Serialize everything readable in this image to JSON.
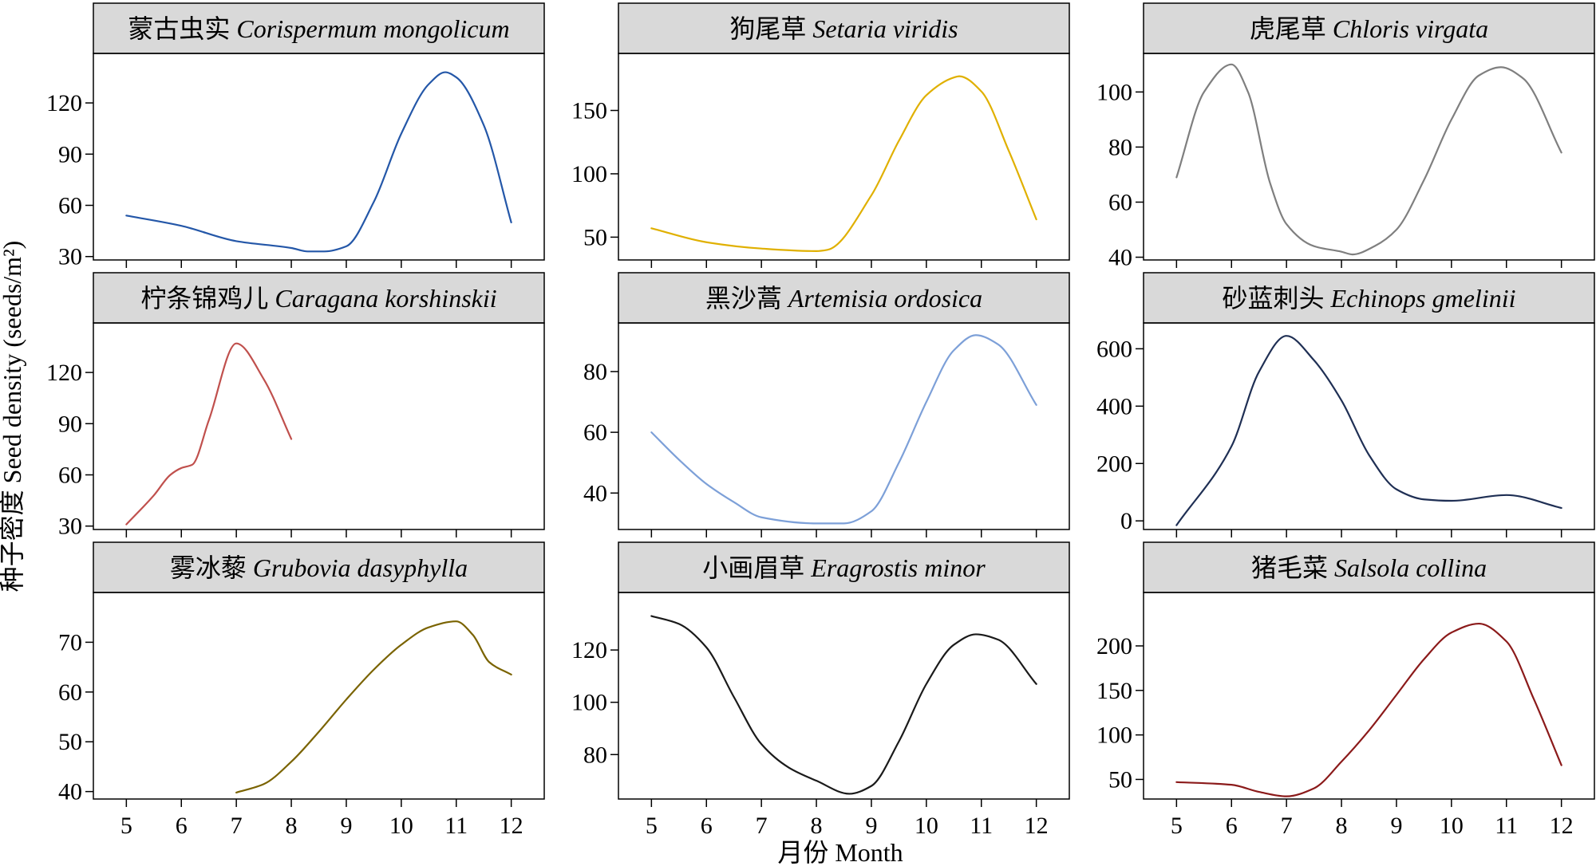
{
  "figure": {
    "ylabel": "种子密度 Seed density (seeds/m²)",
    "xlabel": "月份 Month"
  },
  "chart_data": [
    {
      "type": "line",
      "title_cn": "蒙古虫实",
      "title_latin": "Corispermum mongolicum",
      "color": "#2457a8",
      "yticks": [
        30,
        60,
        90,
        120
      ],
      "ylim": [
        28,
        149
      ],
      "xticks": [
        5,
        6,
        7,
        8,
        9,
        10,
        11,
        12
      ],
      "xlim": [
        4.4,
        12.6
      ],
      "x": [
        5,
        6,
        7,
        8,
        8.3,
        8.6,
        9,
        9.5,
        10,
        10.5,
        10.8,
        11,
        11.5,
        12
      ],
      "y": [
        54,
        48,
        39,
        35,
        33,
        33,
        36,
        62,
        102,
        131,
        138,
        135,
        107,
        50
      ]
    },
    {
      "type": "line",
      "title_cn": "狗尾草",
      "title_latin": "Setaria viridis",
      "color": "#e0b000",
      "yticks": [
        50,
        100,
        150
      ],
      "ylim": [
        32,
        195
      ],
      "xticks": [
        5,
        6,
        7,
        8,
        9,
        10,
        11,
        12
      ],
      "xlim": [
        4.4,
        12.6
      ],
      "x": [
        5,
        6,
        7,
        8,
        8.2,
        9,
        9.5,
        10,
        10.5,
        10.6,
        11,
        11.5,
        12
      ],
      "y": [
        57,
        46,
        41,
        39,
        40,
        83,
        126,
        162,
        176,
        177,
        165,
        118,
        64
      ]
    },
    {
      "type": "line",
      "title_cn": "虎尾草",
      "title_latin": "Chloris virgata",
      "color": "#7f7f7f",
      "yticks": [
        40,
        60,
        80,
        100
      ],
      "ylim": [
        39,
        114
      ],
      "xticks": [
        5,
        6,
        7,
        8,
        9,
        10,
        11,
        12
      ],
      "xlim": [
        4.4,
        12.6
      ],
      "x": [
        5,
        5.5,
        6,
        6.3,
        6.7,
        7,
        7.5,
        8,
        8.2,
        8.6,
        9,
        9.5,
        10,
        10.5,
        10.9,
        11.3,
        12
      ],
      "y": [
        69,
        100,
        110,
        100,
        67,
        52,
        44,
        42,
        41,
        44,
        50,
        68,
        90,
        106,
        109,
        105,
        78
      ]
    },
    {
      "type": "line",
      "title_cn": "柠条锦鸡儿",
      "title_latin": "Caragana korshinskii",
      "color": "#c0504d",
      "yticks": [
        30,
        60,
        90,
        120
      ],
      "ylim": [
        28,
        149
      ],
      "xticks": [
        5,
        6,
        7,
        8,
        9,
        10,
        11,
        12
      ],
      "xlim": [
        4.4,
        12.6
      ],
      "x": [
        5,
        5.5,
        5.8,
        6,
        6.2,
        6.5,
        7,
        7.5,
        8
      ],
      "y": [
        31,
        48,
        60,
        64,
        66,
        92,
        137,
        116,
        81
      ]
    },
    {
      "type": "line",
      "title_cn": "黑沙蒿",
      "title_latin": "Artemisia ordosica",
      "color": "#7da0d8",
      "yticks": [
        40,
        60,
        80
      ],
      "ylim": [
        28,
        96
      ],
      "xticks": [
        5,
        6,
        7,
        8,
        9,
        10,
        11,
        12
      ],
      "xlim": [
        4.4,
        12.6
      ],
      "x": [
        5,
        5.5,
        6,
        6.5,
        7,
        8,
        8.5,
        9,
        9.5,
        10,
        10.5,
        10.9,
        11.3,
        12
      ],
      "y": [
        60,
        51,
        43,
        37,
        32,
        30,
        30,
        34,
        50,
        70,
        87,
        92,
        89,
        69
      ]
    },
    {
      "type": "line",
      "title_cn": "砂蓝刺头",
      "title_latin": "Echinops gmelinii",
      "color": "#1f2f54",
      "yticks": [
        0,
        200,
        400,
        600
      ],
      "ylim": [
        -30,
        690
      ],
      "xticks": [
        5,
        6,
        7,
        8,
        9,
        10,
        11,
        12
      ],
      "xlim": [
        4.4,
        12.6
      ],
      "x": [
        5,
        6,
        6.5,
        7,
        7.5,
        8,
        8.5,
        9,
        9.5,
        10,
        11,
        12
      ],
      "y": [
        -15,
        260,
        520,
        645,
        560,
        420,
        230,
        110,
        75,
        70,
        90,
        45
      ]
    },
    {
      "type": "line",
      "title_cn": "雾冰藜",
      "title_latin": "Grubovia dasyphylla",
      "color": "#7a6300",
      "yticks": [
        40,
        50,
        60,
        70
      ],
      "ylim": [
        38.5,
        80
      ],
      "xticks": [
        5,
        6,
        7,
        8,
        9,
        10,
        11,
        12
      ],
      "xlim": [
        4.4,
        12.6
      ],
      "x": [
        7,
        7.5,
        8,
        8.5,
        9,
        9.5,
        10,
        10.5,
        11,
        11.3,
        11.6,
        12
      ],
      "y": [
        39.8,
        41.5,
        46,
        52,
        58.5,
        64.5,
        69.5,
        73,
        74.2,
        71.5,
        66,
        63.5
      ]
    },
    {
      "type": "line",
      "title_cn": "小画眉草",
      "title_latin": "Eragrostis minor",
      "color": "#1a1a1a",
      "yticks": [
        80,
        100,
        120
      ],
      "ylim": [
        63,
        142
      ],
      "xticks": [
        5,
        6,
        7,
        8,
        9,
        10,
        11,
        12
      ],
      "xlim": [
        4.4,
        12.6
      ],
      "x": [
        5,
        5.5,
        6,
        6.5,
        7,
        7.5,
        8,
        8.6,
        9,
        9.5,
        10,
        10.5,
        10.9,
        11.3,
        12
      ],
      "y": [
        133,
        130,
        121,
        102,
        84,
        75,
        70,
        65,
        68,
        85,
        107,
        122,
        126,
        124,
        107
      ]
    },
    {
      "type": "line",
      "title_cn": "猪毛菜",
      "title_latin": "Salsola collina",
      "color": "#8b1a1a",
      "yticks": [
        50,
        100,
        150,
        200
      ],
      "ylim": [
        28,
        260
      ],
      "xticks": [
        5,
        6,
        7,
        8,
        9,
        10,
        11,
        12
      ],
      "xlim": [
        4.4,
        12.6
      ],
      "x": [
        5,
        6,
        6.5,
        7,
        7.5,
        8,
        8.5,
        9,
        9.5,
        10,
        10.5,
        11,
        11.5,
        12
      ],
      "y": [
        47,
        44,
        36,
        31,
        40,
        70,
        105,
        145,
        185,
        215,
        225,
        205,
        140,
        66
      ]
    }
  ]
}
